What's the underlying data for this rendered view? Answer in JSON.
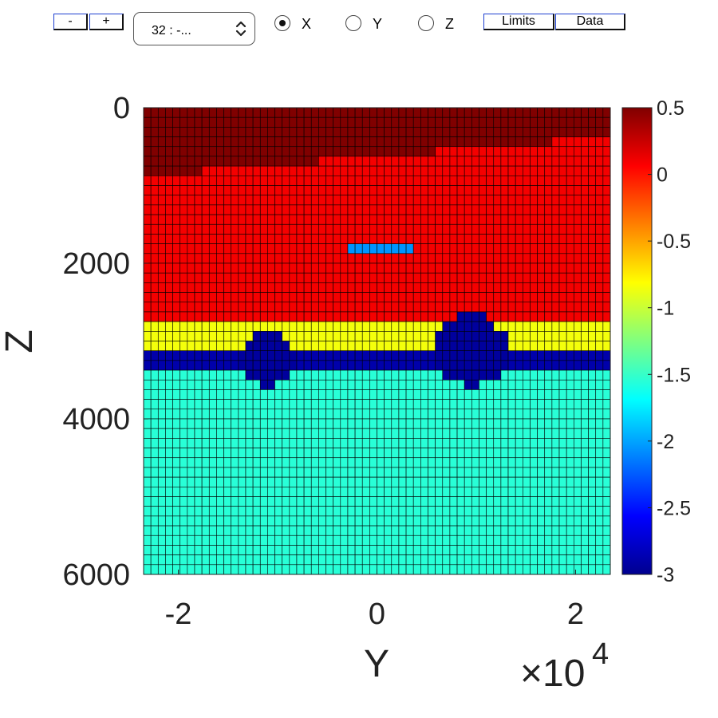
{
  "toolbar": {
    "minus_label": "-",
    "plus_label": "+",
    "slice_select_value": "32 : -...",
    "radios": [
      {
        "label": "X",
        "selected": true
      },
      {
        "label": "Y",
        "selected": false
      },
      {
        "label": "Z",
        "selected": false
      }
    ],
    "limits_label": "Limits",
    "data_label": "Data"
  },
  "chart_data": {
    "type": "heatmap",
    "title": "",
    "xlabel": "Y",
    "ylabel": "Z",
    "x_exponent_label": "×10",
    "x_exponent_power": "4",
    "xlim": [
      -23500,
      23500
    ],
    "ylim": [
      6000,
      0
    ],
    "x_ticks": [
      {
        "value": -20000,
        "label": "-2"
      },
      {
        "value": 0,
        "label": "0"
      },
      {
        "value": 20000,
        "label": "2"
      }
    ],
    "y_ticks": [
      {
        "value": 0,
        "label": "0"
      },
      {
        "value": 2000,
        "label": "2000"
      },
      {
        "value": 4000,
        "label": "4000"
      },
      {
        "value": 6000,
        "label": "6000"
      }
    ],
    "grid": {
      "columns": 64,
      "rows": 48,
      "cell_size_y": 734.4,
      "cell_size_z": 125
    },
    "colormap": "jet",
    "clim": [
      -3,
      0.5
    ],
    "colorbar_ticks": [
      0.5,
      0,
      -0.5,
      -1,
      -1.5,
      -2,
      -2.5,
      -3
    ],
    "colorbar_tick_labels": [
      "0.5",
      "0",
      "-0.5",
      "-1",
      "-1.5",
      "-2",
      "-2.5",
      "-3"
    ],
    "colorbar_placement": "right",
    "layers": [
      {
        "name": "top",
        "value": 0.5,
        "z_bottom_west": 875,
        "z_bottom_east": 375
      },
      {
        "name": "upper",
        "value": 0.1
      },
      {
        "name": "mid",
        "value": -0.85,
        "z_top": 2750,
        "z_bottom": 3125
      },
      {
        "name": "lower",
        "value": -2.85,
        "z_top": 3125,
        "z_bottom": 3375
      },
      {
        "name": "bottom",
        "value": -1.55
      }
    ],
    "anomalies": [
      {
        "name": "shallow-block",
        "value": -2.05,
        "y_range": [
          -3000,
          3500
        ],
        "z_range": [
          1750,
          1875
        ]
      },
      {
        "name": "mound-west",
        "value": -2.9,
        "y_center": -11000,
        "z_top": 2875
      },
      {
        "name": "mound-east",
        "value": -2.9,
        "y_center": 9500,
        "z_top": 2625
      }
    ]
  }
}
